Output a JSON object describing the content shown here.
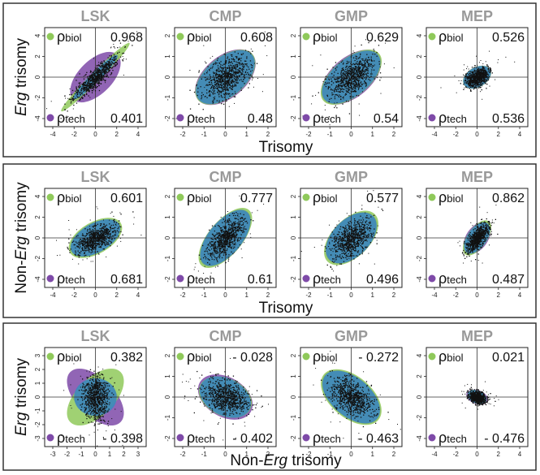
{
  "colors": {
    "biol": "#8fc95a",
    "tech": "#7e4aa8",
    "overlap": "#3c87bf",
    "title": "#999999",
    "frame": "#333333",
    "points": "#111111"
  },
  "legend": {
    "rho": "ρ",
    "biol": "biol",
    "tech": "tech"
  },
  "panels": [
    {
      "ylabel_prefix": "",
      "ylabel_italic": "Erg",
      "ylabel_suffix": " trisomy",
      "xlabel_prefix": "",
      "xlabel_italic": "",
      "xlabel_suffix": "Trisomy",
      "plots": [
        {
          "title": "LSK",
          "rho_biol": "0.968",
          "rho_tech": "0.401",
          "xticks": [
            "-4",
            "-2",
            "0",
            "2",
            "4"
          ],
          "yticks": [
            "-4",
            "-2",
            "0",
            "2",
            "4"
          ]
        },
        {
          "title": "CMP",
          "rho_biol": "0.608",
          "rho_tech": "0.48",
          "xticks": [
            "-2",
            "-1",
            "0",
            "1",
            "2"
          ],
          "yticks": [
            "-2",
            "-1",
            "0",
            "1",
            "2"
          ]
        },
        {
          "title": "GMP",
          "rho_biol": "0.629",
          "rho_tech": "0.54",
          "xticks": [
            "-2",
            "-1",
            "0",
            "1",
            "2"
          ],
          "yticks": [
            "-2",
            "-1",
            "0",
            "1",
            "2"
          ]
        },
        {
          "title": "MEP",
          "rho_biol": "0.526",
          "rho_tech": "0.536",
          "xticks": [
            "-4",
            "-2",
            "0",
            "2",
            "4"
          ],
          "yticks": [
            "-4",
            "-2",
            "0",
            "2",
            "4"
          ]
        }
      ]
    },
    {
      "ylabel_prefix": "Non-",
      "ylabel_italic": "Erg",
      "ylabel_suffix": " trisomy",
      "xlabel_prefix": "",
      "xlabel_italic": "",
      "xlabel_suffix": "Trisomy",
      "plots": [
        {
          "title": "LSK",
          "rho_biol": "0.601",
          "rho_tech": "0.681",
          "xticks": [
            "-4",
            "-2",
            "0",
            "2",
            "4"
          ],
          "yticks": [
            "-4",
            "-2",
            "0",
            "2",
            "4"
          ]
        },
        {
          "title": "CMP",
          "rho_biol": "0.777",
          "rho_tech": "0.61",
          "xticks": [
            "-2",
            "-1",
            "0",
            "1",
            "2"
          ],
          "yticks": [
            "-2",
            "-1",
            "0",
            "1",
            "2"
          ]
        },
        {
          "title": "GMP",
          "rho_biol": "0.577",
          "rho_tech": "0.496",
          "xticks": [
            "-2",
            "-1",
            "0",
            "1",
            "2"
          ],
          "yticks": [
            "-2",
            "-1",
            "0",
            "1",
            "2"
          ]
        },
        {
          "title": "MEP",
          "rho_biol": "0.862",
          "rho_tech": "0.487",
          "xticks": [
            "-4",
            "-2",
            "0",
            "2",
            "4"
          ],
          "yticks": [
            "-4",
            "-2",
            "0",
            "2",
            "4"
          ]
        }
      ]
    },
    {
      "ylabel_prefix": "",
      "ylabel_italic": "Erg",
      "ylabel_suffix": " trisomy",
      "xlabel_prefix": "Non-",
      "xlabel_italic": "Erg",
      "xlabel_suffix": " trisomy",
      "plots": [
        {
          "title": "LSK",
          "rho_biol": "0.382",
          "rho_tech": "- 0.398",
          "xticks": [
            "-3",
            "-2",
            "-1",
            "0",
            "1",
            "2",
            "3"
          ],
          "yticks": [
            "-3",
            "-2",
            "-1",
            "0",
            "1",
            "2",
            "3"
          ]
        },
        {
          "title": "CMP",
          "rho_biol": "- 0.028",
          "rho_tech": "- 0.402",
          "xticks": [
            "-2",
            "-1",
            "0",
            "1",
            "2"
          ],
          "yticks": [
            "-2",
            "-1",
            "0",
            "1",
            "2"
          ]
        },
        {
          "title": "GMP",
          "rho_biol": "- 0.272",
          "rho_tech": "- 0.463",
          "xticks": [
            "-2",
            "-1",
            "0",
            "1",
            "2"
          ],
          "yticks": [
            "-2",
            "-1",
            "0",
            "1",
            "2"
          ]
        },
        {
          "title": "MEP",
          "rho_biol": "0.021",
          "rho_tech": "- 0.476",
          "xticks": [
            "-4",
            "-2",
            "0",
            "2",
            "4"
          ],
          "yticks": [
            "-4",
            "-2",
            "0",
            "2",
            "4"
          ]
        }
      ]
    }
  ],
  "chart_data": [
    {
      "type": "scatter",
      "title": "LSK",
      "xlabel": "Trisomy",
      "ylabel": "Erg trisomy",
      "xlim": [
        -4,
        4
      ],
      "ylim": [
        -4,
        4
      ],
      "rho_biol": 0.968,
      "rho_tech": 0.401,
      "grid": false
    },
    {
      "type": "scatter",
      "title": "CMP",
      "xlabel": "Trisomy",
      "ylabel": "Erg trisomy",
      "xlim": [
        -2,
        2
      ],
      "ylim": [
        -2,
        2
      ],
      "rho_biol": 0.608,
      "rho_tech": 0.48,
      "grid": false
    },
    {
      "type": "scatter",
      "title": "GMP",
      "xlabel": "Trisomy",
      "ylabel": "Erg trisomy",
      "xlim": [
        -2,
        2
      ],
      "ylim": [
        -2,
        2
      ],
      "rho_biol": 0.629,
      "rho_tech": 0.54,
      "grid": false
    },
    {
      "type": "scatter",
      "title": "MEP",
      "xlabel": "Trisomy",
      "ylabel": "Erg trisomy",
      "xlim": [
        -4,
        4
      ],
      "ylim": [
        -4,
        4
      ],
      "rho_biol": 0.526,
      "rho_tech": 0.536,
      "grid": false
    },
    {
      "type": "scatter",
      "title": "LSK",
      "xlabel": "Trisomy",
      "ylabel": "Non-Erg trisomy",
      "xlim": [
        -4,
        4
      ],
      "ylim": [
        -4,
        4
      ],
      "rho_biol": 0.601,
      "rho_tech": 0.681,
      "grid": false
    },
    {
      "type": "scatter",
      "title": "CMP",
      "xlabel": "Trisomy",
      "ylabel": "Non-Erg trisomy",
      "xlim": [
        -2,
        2
      ],
      "ylim": [
        -2,
        2
      ],
      "rho_biol": 0.777,
      "rho_tech": 0.61,
      "grid": false
    },
    {
      "type": "scatter",
      "title": "GMP",
      "xlabel": "Trisomy",
      "ylabel": "Non-Erg trisomy",
      "xlim": [
        -2,
        2
      ],
      "ylim": [
        -2,
        2
      ],
      "rho_biol": 0.577,
      "rho_tech": 0.496,
      "grid": false
    },
    {
      "type": "scatter",
      "title": "MEP",
      "xlabel": "Trisomy",
      "ylabel": "Non-Erg trisomy",
      "xlim": [
        -4,
        4
      ],
      "ylim": [
        -4,
        4
      ],
      "rho_biol": 0.862,
      "rho_tech": 0.487,
      "grid": false
    },
    {
      "type": "scatter",
      "title": "LSK",
      "xlabel": "Non-Erg trisomy",
      "ylabel": "Erg trisomy",
      "xlim": [
        -3,
        3
      ],
      "ylim": [
        -3,
        3
      ],
      "rho_biol": 0.382,
      "rho_tech": -0.398,
      "grid": false
    },
    {
      "type": "scatter",
      "title": "CMP",
      "xlabel": "Non-Erg trisomy",
      "ylabel": "Erg trisomy",
      "xlim": [
        -2,
        2
      ],
      "ylim": [
        -2,
        2
      ],
      "rho_biol": -0.028,
      "rho_tech": -0.402,
      "grid": false
    },
    {
      "type": "scatter",
      "title": "GMP",
      "xlabel": "Non-Erg trisomy",
      "ylabel": "Erg trisomy",
      "xlim": [
        -2,
        2
      ],
      "ylim": [
        -2,
        2
      ],
      "rho_biol": -0.272,
      "rho_tech": -0.463,
      "grid": false
    },
    {
      "type": "scatter",
      "title": "MEP",
      "xlabel": "Non-Erg trisomy",
      "ylabel": "Erg trisomy",
      "xlim": [
        -4,
        4
      ],
      "ylim": [
        -4,
        4
      ],
      "rho_biol": 0.021,
      "rho_tech": -0.476,
      "grid": false
    }
  ]
}
